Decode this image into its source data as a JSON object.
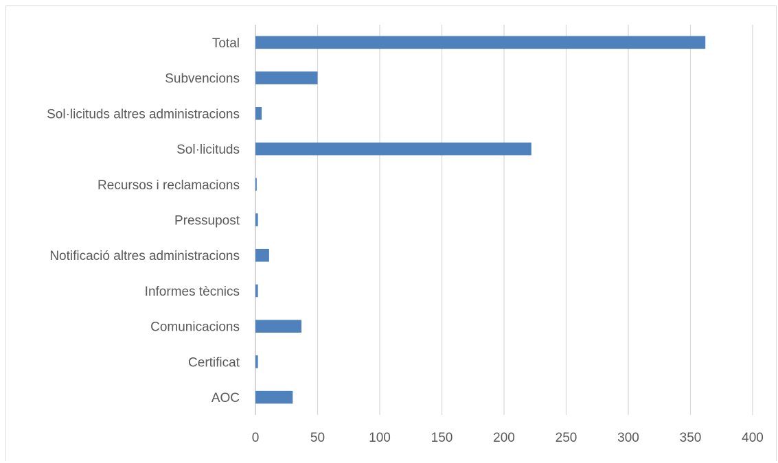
{
  "chart_data": {
    "type": "bar",
    "orientation": "horizontal",
    "categories": [
      "AOC",
      "Certificat",
      "Comunicacions",
      "Informes tècnics",
      "Notificació altres administracions",
      "Pressupost",
      "Recursos i reclamacions",
      "Sol·licituds",
      "Sol·licituds altres administracions",
      "Subvencions",
      "Total"
    ],
    "values": [
      30,
      2,
      37,
      2,
      11,
      2,
      1,
      222,
      5,
      50,
      362
    ],
    "title": "",
    "xlabel": "",
    "ylabel": "",
    "xlim": [
      0,
      400
    ],
    "xticks": [
      0,
      50,
      100,
      150,
      200,
      250,
      300,
      350,
      400
    ],
    "grid": true,
    "legend": "none",
    "bar_color": "#4f81bd"
  }
}
